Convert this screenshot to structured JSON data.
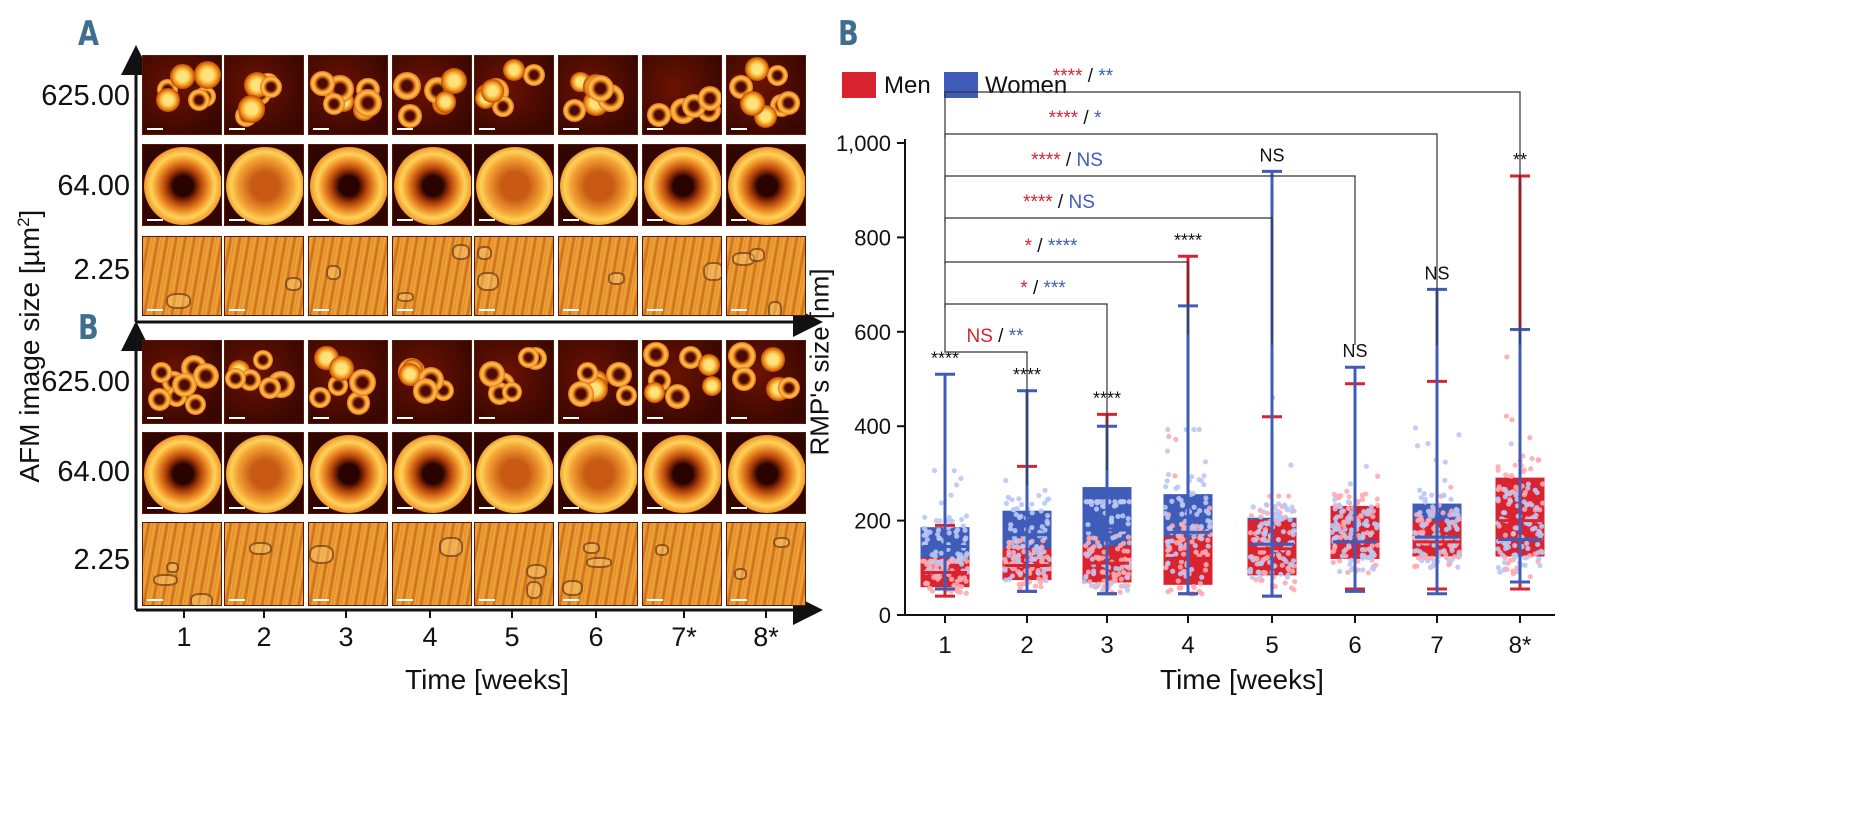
{
  "panel_left": {
    "letter_top": "A",
    "letter_bottom": "B",
    "y_title": "AFM image size [µm",
    "y_title_sup": "2",
    "y_title_end": "]",
    "row_labels": [
      "625.00",
      "64.00",
      "2.25"
    ],
    "x_title": "Time [weeks]",
    "x_labels": [
      "1",
      "2",
      "3",
      "4",
      "5",
      "6",
      "7*",
      "8*"
    ]
  },
  "chart_data": {
    "type": "box",
    "panel_letter": "B",
    "xlabel": "Time [weeks]",
    "ylabel": "RMP's size [nm]",
    "categories": [
      "1",
      "2",
      "3",
      "4",
      "5",
      "6",
      "7",
      "8*"
    ],
    "ylim": [
      0,
      1000
    ],
    "yticks": [
      "0",
      "200",
      "400",
      "600",
      "800",
      "1,000"
    ],
    "ytick_values": [
      0,
      200,
      400,
      600,
      800,
      1000
    ],
    "legend": [
      {
        "name": "Men",
        "color": "#d9232e"
      },
      {
        "name": "Women",
        "color": "#3f5db8"
      }
    ],
    "series": [
      {
        "name": "Men",
        "color": "#d9232e",
        "min": [
          40,
          50,
          45,
          45,
          40,
          55,
          55,
          55
        ],
        "q1": [
          60,
          75,
          70,
          65,
          85,
          120,
          125,
          125
        ],
        "median": [
          90,
          105,
          110,
          120,
          140,
          155,
          155,
          200
        ],
        "q3": [
          120,
          140,
          145,
          165,
          200,
          230,
          200,
          290
        ],
        "max": [
          190,
          315,
          425,
          760,
          420,
          490,
          495,
          930
        ]
      },
      {
        "name": "Women",
        "color": "#3f5db8",
        "min": [
          55,
          50,
          45,
          45,
          40,
          50,
          45,
          70
        ],
        "q1": [
          110,
          105,
          100,
          110,
          105,
          120,
          130,
          125
        ],
        "median": [
          145,
          170,
          180,
          175,
          150,
          155,
          165,
          160
        ],
        "q3": [
          185,
          220,
          270,
          255,
          205,
          215,
          235,
          240
        ],
        "max": [
          510,
          475,
          400,
          655,
          940,
          525,
          690,
          605
        ]
      }
    ],
    "point_annotations": [
      "****",
      "****",
      "****",
      "****",
      "NS",
      "NS",
      "NS",
      "**"
    ],
    "brackets": [
      {
        "from": "1",
        "to": "2",
        "men": "NS",
        "women": "**"
      },
      {
        "from": "1",
        "to": "3",
        "men": "*",
        "women": "***"
      },
      {
        "from": "1",
        "to": "4",
        "men": "*",
        "women": "****"
      },
      {
        "from": "1",
        "to": "5",
        "men": "****",
        "women": "NS"
      },
      {
        "from": "1",
        "to": "6",
        "men": "****",
        "women": "NS"
      },
      {
        "from": "1",
        "to": "7",
        "men": "****",
        "women": "*"
      },
      {
        "from": "1",
        "to": "8*",
        "men": "****",
        "women": "**"
      }
    ],
    "separator": "/"
  }
}
